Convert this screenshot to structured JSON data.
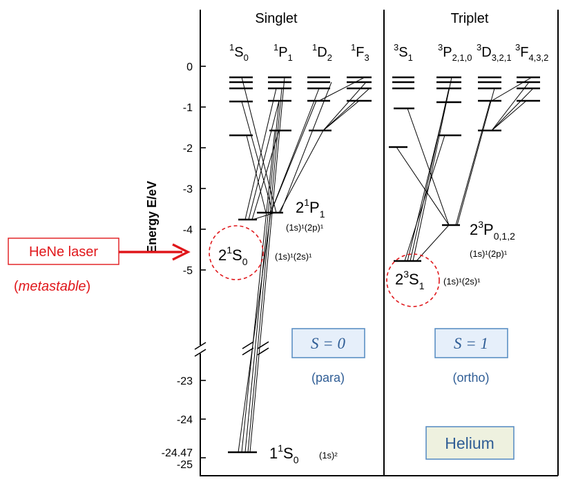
{
  "panels": {
    "singlet": {
      "title": "Singlet",
      "spin_label": "S = 0",
      "type_label": "(para)",
      "columns": [
        {
          "pre": "1",
          "L": "S",
          "sub": "0"
        },
        {
          "pre": "1",
          "L": "P",
          "sub": "1"
        },
        {
          "pre": "1",
          "L": "D",
          "sub": "2"
        },
        {
          "pre": "1",
          "L": "F",
          "sub": "3"
        }
      ]
    },
    "triplet": {
      "title": "Triplet",
      "spin_label": "S = 1",
      "type_label": "(ortho)",
      "columns": [
        {
          "pre": "3",
          "L": "S",
          "sub": "1"
        },
        {
          "pre": "3",
          "L": "P",
          "sub": "2,1,0"
        },
        {
          "pre": "3",
          "L": "D",
          "sub": "3,2,1"
        },
        {
          "pre": "3",
          "L": "F",
          "sub": "4,3,2"
        }
      ]
    }
  },
  "y_axis": {
    "label": "Energy E/eV",
    "ticks_upper": [
      "0",
      "-1",
      "-2",
      "-3",
      "-4",
      "-5"
    ],
    "ticks_lower": [
      "-23",
      "-24",
      "-24.47",
      "-25"
    ]
  },
  "states": {
    "s21P1": {
      "main": "2",
      "pre": "1",
      "L": "P",
      "sub": "1",
      "config": "(1s)¹(2p)¹"
    },
    "s21S0": {
      "main": "2",
      "pre": "1",
      "L": "S",
      "sub": "0",
      "config": "(1s)¹(2s)¹"
    },
    "s23P": {
      "main": "2",
      "pre": "3",
      "L": "P",
      "sub": "0,1,2",
      "config": "(1s)¹(2p)¹"
    },
    "s23S1": {
      "main": "2",
      "pre": "3",
      "L": "S",
      "sub": "1",
      "config": "(1s)¹(2s)¹"
    },
    "s11S0": {
      "main": "1",
      "pre": "1",
      "L": "S",
      "sub": "0",
      "config": "(1s)²"
    }
  },
  "annotations": {
    "hene_label": "HeNe laser",
    "metastable": "metastable",
    "element_label": "Helium"
  },
  "colors": {
    "accent_red": "#e0171b",
    "box_border_blue": "#5b8fc4",
    "box_fill_blue": "#e6effa",
    "text_blue": "#2f5d95",
    "helium_fill": "#eef1df",
    "helium_border": "#5b8fc4"
  }
}
